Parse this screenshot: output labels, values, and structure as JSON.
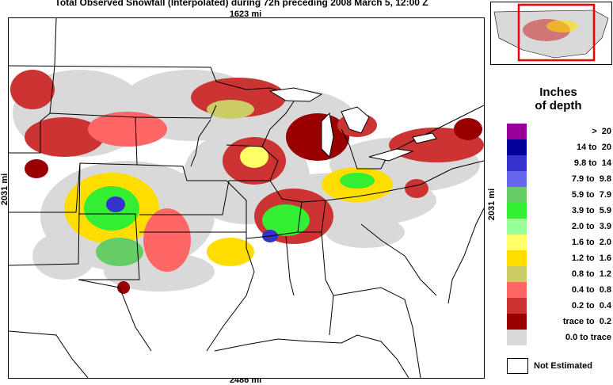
{
  "title": "Total Observed Snowfall (Interpolated) during 72h preceding 2008 March 5, 12:00 Z",
  "dims": {
    "top": "1623 mi",
    "bottom": "2486 mi",
    "left": "2031 mi",
    "right": "2031 mi"
  },
  "legend": {
    "title_line1": "Inches",
    "title_line2": "of depth",
    "items": [
      {
        "label": ">  20",
        "color": "#990099"
      },
      {
        "label": "14 to  20",
        "color": "#000099"
      },
      {
        "label": "9.8 to  14",
        "color": "#3333cc"
      },
      {
        "label": "7.9 to  9.8",
        "color": "#6666ee"
      },
      {
        "label": "5.9 to  7.9",
        "color": "#66cc66"
      },
      {
        "label": "3.9 to  5.9",
        "color": "#33ee33"
      },
      {
        "label": "2.0 to  3.9",
        "color": "#99ff99"
      },
      {
        "label": "1.6 to  2.0",
        "color": "#ffff66"
      },
      {
        "label": "1.2 to  1.6",
        "color": "#ffdd00"
      },
      {
        "label": "0.8 to  1.2",
        "color": "#cccc66"
      },
      {
        "label": "0.4 to  0.8",
        "color": "#ff6666"
      },
      {
        "label": "0.2 to  0.4",
        "color": "#cc3333"
      },
      {
        "label": "trace to  0.2",
        "color": "#990000"
      },
      {
        "label": "0.0 to trace",
        "color": "#d9d9d9"
      }
    ],
    "not_estimated": "Not Estimated"
  }
}
